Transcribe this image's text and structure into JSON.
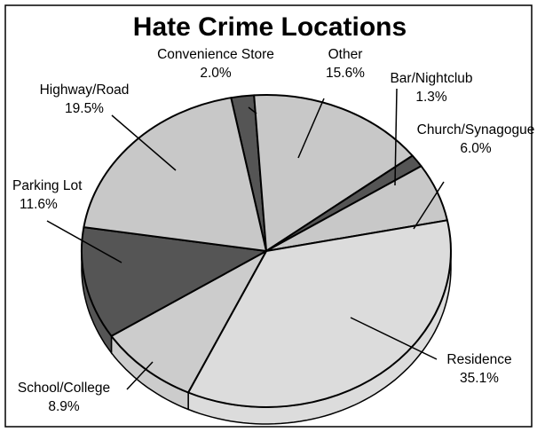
{
  "chart_data": {
    "type": "pie",
    "title": "Hate Crime Locations",
    "legend": "none",
    "slices": [
      {
        "label": "Convenience Store",
        "value_text": "2.0%",
        "value": 2.0,
        "color": "#555555"
      },
      {
        "label": "Other",
        "value_text": "15.6%",
        "value": 15.6,
        "color": "#c8c8c8"
      },
      {
        "label": "Bar/Nightclub",
        "value_text": "1.3%",
        "value": 1.3,
        "color": "#555555"
      },
      {
        "label": "Church/Synagogue",
        "value_text": "6.0%",
        "value": 6.0,
        "color": "#c8c8c8"
      },
      {
        "label": "Residence",
        "value_text": "35.1%",
        "value": 35.1,
        "color": "#dcdcdc"
      },
      {
        "label": "School/College",
        "value_text": "8.9%",
        "value": 8.9,
        "color": "#cccccc"
      },
      {
        "label": "Parking Lot",
        "value_text": "11.6%",
        "value": 11.6,
        "color": "#555555"
      },
      {
        "label": "Highway/Road",
        "value_text": "19.5%",
        "value": 19.5,
        "color": "#c8c8c8"
      }
    ]
  }
}
